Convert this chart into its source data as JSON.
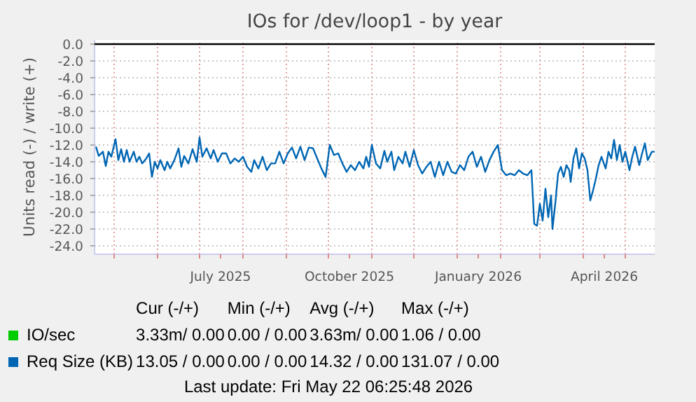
{
  "chart_data": {
    "type": "line",
    "title": "IOs for /dev/loop1 - by year",
    "ylabel": "Units read (-) / write (+)",
    "xlim": [
      "2025-04-17",
      "2026-05-22"
    ],
    "xticks": [
      {
        "value": "2025-05-01",
        "label": null
      },
      {
        "value": "2025-06-01",
        "label": null
      },
      {
        "value": "2025-07-01",
        "label": null
      },
      {
        "value": "2025-07-16",
        "label": "July 2025"
      },
      {
        "value": "2025-08-01",
        "label": null
      },
      {
        "value": "2025-09-01",
        "label": null
      },
      {
        "value": "2025-10-01",
        "label": null
      },
      {
        "value": "2025-10-16",
        "label": "October 2025"
      },
      {
        "value": "2025-11-01",
        "label": null
      },
      {
        "value": "2025-12-01",
        "label": null
      },
      {
        "value": "2026-01-01",
        "label": null
      },
      {
        "value": "2026-01-16",
        "label": "January 2026"
      },
      {
        "value": "2026-02-01",
        "label": null
      },
      {
        "value": "2026-03-01",
        "label": null
      },
      {
        "value": "2026-04-01",
        "label": null
      },
      {
        "value": "2026-04-16",
        "label": "April 2026"
      },
      {
        "value": "2026-05-01",
        "label": null
      }
    ],
    "ylim": [
      -25,
      0.5
    ],
    "yticks": [
      {
        "value": 0,
        "label": "0.0"
      },
      {
        "value": -2,
        "label": "-2.0"
      },
      {
        "value": -4,
        "label": "-4.0"
      },
      {
        "value": -6,
        "label": "-6.0"
      },
      {
        "value": -8,
        "label": "-8.0"
      },
      {
        "value": -10,
        "label": "-10.0"
      },
      {
        "value": -12,
        "label": "-12.0"
      },
      {
        "value": -14,
        "label": "-14.0"
      },
      {
        "value": -16,
        "label": "-16.0"
      },
      {
        "value": -18,
        "label": "-18.0"
      },
      {
        "value": -20,
        "label": "-20.0"
      },
      {
        "value": -22,
        "label": "-22.0"
      },
      {
        "value": -24,
        "label": "-24.0"
      }
    ],
    "grid": true,
    "legend": "bottom",
    "series": [
      {
        "name": "IO/sec",
        "color": "#00cc00"
      },
      {
        "name": "Req Size (KB)",
        "color": "#0066b3",
        "x": [
          "2025-04-18",
          "2025-04-20",
          "2025-04-23",
          "2025-04-25",
          "2025-04-27",
          "2025-04-29",
          "2025-05-02",
          "2025-05-04",
          "2025-05-06",
          "2025-05-08",
          "2025-05-10",
          "2025-05-12",
          "2025-05-15",
          "2025-05-17",
          "2025-05-19",
          "2025-05-21",
          "2025-05-24",
          "2025-05-26",
          "2025-05-28",
          "2025-05-30",
          "2025-06-01",
          "2025-06-03",
          "2025-06-06",
          "2025-06-08",
          "2025-06-10",
          "2025-06-13",
          "2025-06-16",
          "2025-06-18",
          "2025-06-20",
          "2025-06-23",
          "2025-06-26",
          "2025-06-29",
          "2025-07-01",
          "2025-07-03",
          "2025-07-06",
          "2025-07-09",
          "2025-07-11",
          "2025-07-14",
          "2025-07-17",
          "2025-07-20",
          "2025-07-23",
          "2025-07-26",
          "2025-07-29",
          "2025-08-01",
          "2025-08-04",
          "2025-08-07",
          "2025-08-09",
          "2025-08-12",
          "2025-08-15",
          "2025-08-18",
          "2025-08-21",
          "2025-08-24",
          "2025-08-27",
          "2025-08-30",
          "2025-09-02",
          "2025-09-05",
          "2025-09-08",
          "2025-09-11",
          "2025-09-14",
          "2025-09-17",
          "2025-09-20",
          "2025-09-23",
          "2025-09-26",
          "2025-09-29",
          "2025-10-02",
          "2025-10-05",
          "2025-10-08",
          "2025-10-11",
          "2025-10-14",
          "2025-10-17",
          "2025-10-20",
          "2025-10-23",
          "2025-10-26",
          "2025-10-28",
          "2025-10-30",
          "2025-11-01",
          "2025-11-04",
          "2025-11-07",
          "2025-11-10",
          "2025-11-12",
          "2025-11-15",
          "2025-11-17",
          "2025-11-20",
          "2025-11-23",
          "2025-11-25",
          "2025-11-28",
          "2025-12-01",
          "2025-12-04",
          "2025-12-07",
          "2025-12-10",
          "2025-12-13",
          "2025-12-16",
          "2025-12-19",
          "2025-12-22",
          "2025-12-25",
          "2025-12-28",
          "2025-12-31",
          "2026-01-03",
          "2026-01-06",
          "2026-01-09",
          "2026-01-12",
          "2026-01-15",
          "2026-01-18",
          "2026-01-21",
          "2026-01-24",
          "2026-01-27",
          "2026-01-30",
          "2026-02-02",
          "2026-02-05",
          "2026-02-08",
          "2026-02-11",
          "2026-02-14",
          "2026-02-17",
          "2026-02-20",
          "2026-02-23",
          "2026-02-25",
          "2026-02-27",
          "2026-03-01",
          "2026-03-03",
          "2026-03-05",
          "2026-03-07",
          "2026-03-09",
          "2026-03-10",
          "2026-03-12",
          "2026-03-14",
          "2026-03-16",
          "2026-03-18",
          "2026-03-20",
          "2026-03-22",
          "2026-03-23",
          "2026-03-25",
          "2026-03-27",
          "2026-03-29",
          "2026-03-31",
          "2026-04-02",
          "2026-04-04",
          "2026-04-06",
          "2026-04-08",
          "2026-04-10",
          "2026-04-12",
          "2026-04-14",
          "2026-04-17",
          "2026-04-19",
          "2026-04-21",
          "2026-04-23",
          "2026-04-25",
          "2026-04-27",
          "2026-04-29",
          "2026-05-01",
          "2026-05-04",
          "2026-05-06",
          "2026-05-08",
          "2026-05-11",
          "2026-05-13",
          "2026-05-15",
          "2026-05-17",
          "2026-05-20",
          "2026-05-22"
        ],
        "values": [
          -12.2,
          -13.3,
          -12.8,
          -14.5,
          -12.8,
          -13.4,
          -11.3,
          -13.8,
          -12.5,
          -14.0,
          -12.6,
          -14.0,
          -12.8,
          -14.0,
          -13.4,
          -14.2,
          -13.6,
          -13.0,
          -15.8,
          -14.0,
          -14.8,
          -13.8,
          -15.0,
          -14.0,
          -14.8,
          -13.8,
          -12.4,
          -14.6,
          -13.3,
          -14.2,
          -12.5,
          -14.0,
          -11.1,
          -13.4,
          -12.4,
          -13.6,
          -12.6,
          -14.0,
          -13.0,
          -13.0,
          -14.2,
          -13.6,
          -14.0,
          -13.4,
          -14.6,
          -15.2,
          -13.8,
          -14.8,
          -13.4,
          -15.0,
          -14.2,
          -14.2,
          -12.8,
          -14.2,
          -13.0,
          -12.3,
          -13.6,
          -12.2,
          -13.8,
          -12.3,
          -12.4,
          -13.6,
          -14.8,
          -15.8,
          -12.0,
          -13.2,
          -13.0,
          -14.2,
          -15.2,
          -14.4,
          -15.0,
          -14.0,
          -14.8,
          -13.4,
          -14.6,
          -12.0,
          -14.2,
          -14.8,
          -12.7,
          -14.0,
          -12.8,
          -15.0,
          -13.4,
          -14.2,
          -12.8,
          -14.6,
          -12.6,
          -14.4,
          -15.4,
          -14.6,
          -14.0,
          -15.8,
          -14.0,
          -15.6,
          -14.0,
          -15.2,
          -15.4,
          -14.4,
          -15.0,
          -13.4,
          -12.8,
          -14.6,
          -13.4,
          -15.2,
          -13.8,
          -12.8,
          -12.0,
          -15.0,
          -15.6,
          -15.4,
          -15.6,
          -15.0,
          -15.4,
          -15.6,
          -15.0,
          -21.4,
          -21.6,
          -19.0,
          -21.0,
          -17.2,
          -20.6,
          -18.0,
          -22.0,
          -19.0,
          -15.4,
          -14.6,
          -15.8,
          -14.4,
          -15.0,
          -16.4,
          -13.6,
          -12.4,
          -14.8,
          -13.0,
          -13.6,
          -15.0,
          -18.6,
          -17.4,
          -16.0,
          -14.4,
          -13.4,
          -14.8,
          -12.8,
          -13.6,
          -11.4,
          -13.8,
          -12.0,
          -14.0,
          -12.8,
          -15.0,
          -13.4,
          -12.2,
          -14.4,
          -13.0,
          -11.8,
          -13.8,
          -12.8,
          -12.8
        ]
      }
    ],
    "annotations": [
      "Cur (-/+)",
      "Min (-/+)",
      "Avg (-/+)",
      "Max (-/+)",
      "3.33m/ 0.00",
      "0.00 / 0.00",
      "3.63m/ 0.00",
      "1.06 / 0.00",
      "13.05 / 0.00",
      "0.00 / 0.00",
      "14.32 / 0.00",
      "131.07 / 0.00",
      "Last update: Fri May 22 06:25:48 2026"
    ]
  }
}
